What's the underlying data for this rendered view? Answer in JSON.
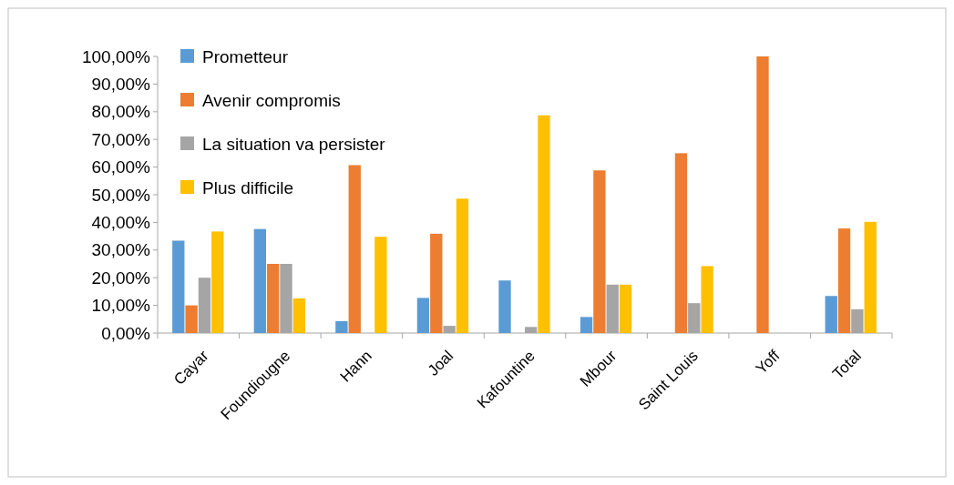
{
  "chart_data": {
    "type": "bar",
    "categories": [
      "Cayar",
      "Foundiougne",
      "Hann",
      "Joal",
      "Kafountine",
      "Mbour",
      "Saint Louis",
      "Yoff",
      "Total"
    ],
    "series": [
      {
        "name": "Prometteur",
        "color": "#5b9bd5",
        "values": [
          33.4,
          37.6,
          4.3,
          12.7,
          19,
          5.8,
          null,
          null,
          13.4
        ]
      },
      {
        "name": "Avenir compromis",
        "color": "#ed7d31",
        "values": [
          10,
          25,
          60.7,
          35.9,
          null,
          58.8,
          65,
          100,
          37.8
        ]
      },
      {
        "name": "La situation va persister",
        "color": "#a5a5a5",
        "values": [
          20,
          25,
          null,
          2.6,
          2.2,
          17.5,
          10.8,
          null,
          8.6
        ]
      },
      {
        "name": "Plus difficile",
        "color": "#ffc000",
        "values": [
          36.7,
          12.5,
          34.8,
          48.6,
          78.7,
          17.5,
          24.2,
          null,
          40.2
        ]
      }
    ],
    "ylim": [
      0,
      100
    ],
    "yticks": [
      {
        "value": 0,
        "label": "0,00%"
      },
      {
        "value": 10,
        "label": "10,00%"
      },
      {
        "value": 20,
        "label": "20,00%"
      },
      {
        "value": 30,
        "label": "30,00%"
      },
      {
        "value": 40,
        "label": "40,00%"
      },
      {
        "value": 50,
        "label": "50,00%"
      },
      {
        "value": 60,
        "label": "60,00%"
      },
      {
        "value": 70,
        "label": "70,00%"
      },
      {
        "value": 80,
        "label": "80,00%"
      },
      {
        "value": 90,
        "label": "90,00%"
      },
      {
        "value": 100,
        "label": "100,00%"
      }
    ],
    "grid": false,
    "legend": "top left"
  }
}
